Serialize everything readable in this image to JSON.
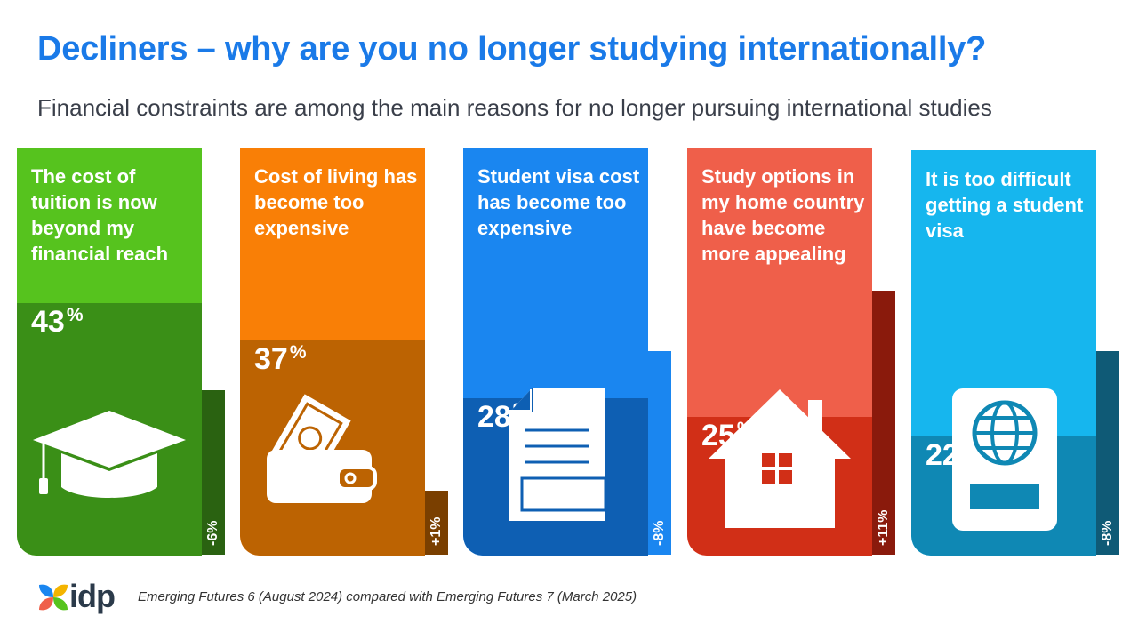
{
  "title": "Decliners – why are you no longer studying internationally?",
  "subtitle": "Financial constraints are among the main reasons for no longer pursuing international studies",
  "source": "Emerging Futures 6 (August 2024) compared with Emerging Futures 7 (March 2025)",
  "logo_text": "idp",
  "chart_data": {
    "type": "bar",
    "title": "Decliners – why are you no longer studying internationally?",
    "subtitle": "Financial constraints are among the main reasons for no longer pursuing international studies",
    "categories": [
      "The cost of tuition is now beyond my financial reach",
      "Cost of living has become too expensive",
      "Student visa cost has become too expensive",
      "Study options in my home country have become more appealing",
      "It is too difficult getting a student visa"
    ],
    "values": [
      43,
      37,
      28,
      25,
      22
    ],
    "value_suffix": "%",
    "changes": [
      -6,
      1,
      -8,
      11,
      -8
    ],
    "change_labels": [
      "-6%",
      "+1%",
      "-8%",
      "+11%",
      "-8%"
    ],
    "ylim": [
      0,
      100
    ],
    "colors": [
      {
        "top": "#56c31e",
        "bottom": "#3a8f17",
        "tab": "#2a6211"
      },
      {
        "top": "#f97f06",
        "bottom": "#bc6302",
        "tab": "#7a3f00"
      },
      {
        "top": "#1a86f0",
        "bottom": "#0e5fb3",
        "tab": "#1a86f0"
      },
      {
        "top": "#ef5f4a",
        "bottom": "#d12f17",
        "tab": "#8a1a0c"
      },
      {
        "top": "#16b6ee",
        "bottom": "#0f88b4",
        "tab": "#0f5a76"
      }
    ],
    "icons": [
      "graduation-cap-icon",
      "wallet-icon",
      "document-icon",
      "house-icon",
      "passport-icon"
    ],
    "legend": "none",
    "grid": false
  }
}
